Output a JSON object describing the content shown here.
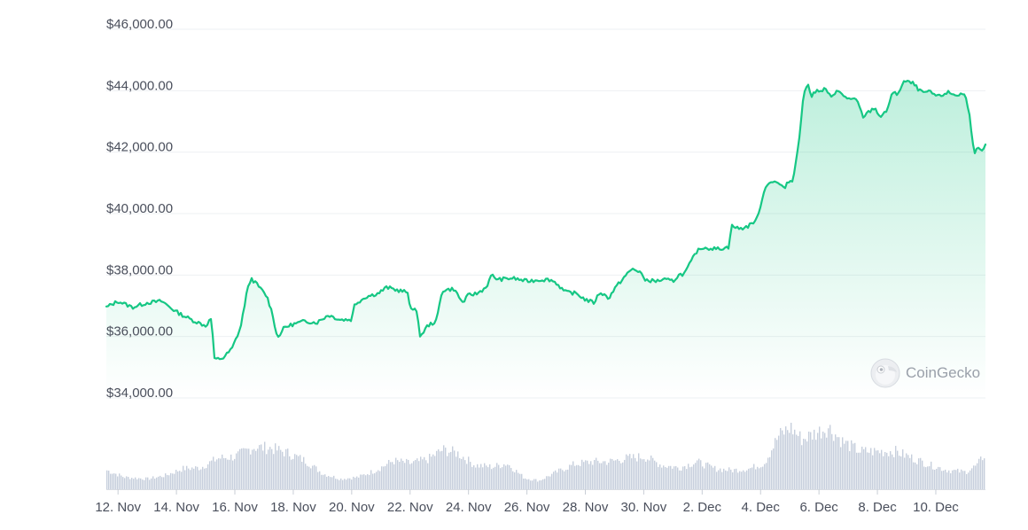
{
  "chart_data": {
    "type": "area",
    "title": "",
    "xlabel": "",
    "ylabel": "",
    "ylim": [
      34000,
      46000
    ],
    "yticks": [
      {
        "value": 46000,
        "label": "$46,000.00"
      },
      {
        "value": 44000,
        "label": "$44,000.00"
      },
      {
        "value": 42000,
        "label": "$42,000.00"
      },
      {
        "value": 40000,
        "label": "$40,000.00"
      },
      {
        "value": 38000,
        "label": "$38,000.00"
      },
      {
        "value": 36000,
        "label": "$36,000.00"
      },
      {
        "value": 34000,
        "label": "$34,000.00"
      }
    ],
    "xlim": [
      11.6,
      41.7
    ],
    "xticks": [
      {
        "value": 12,
        "label": "12. Nov"
      },
      {
        "value": 14,
        "label": "14. Nov"
      },
      {
        "value": 16,
        "label": "16. Nov"
      },
      {
        "value": 18,
        "label": "18. Nov"
      },
      {
        "value": 20,
        "label": "20. Nov"
      },
      {
        "value": 22,
        "label": "22. Nov"
      },
      {
        "value": 24,
        "label": "24. Nov"
      },
      {
        "value": 26,
        "label": "26. Nov"
      },
      {
        "value": 28,
        "label": "28. Nov"
      },
      {
        "value": 30,
        "label": "30. Nov"
      },
      {
        "value": 32,
        "label": "2. Dec"
      },
      {
        "value": 34,
        "label": "4. Dec"
      },
      {
        "value": 36,
        "label": "6. Dec"
      },
      {
        "value": 38,
        "label": "8. Dec"
      },
      {
        "value": 40,
        "label": "10. Dec"
      }
    ],
    "grid": true,
    "legend": "none",
    "series": [
      {
        "kind": "price",
        "color": "#16c784",
        "points": [
          [
            11.6,
            36950
          ],
          [
            12.0,
            37150
          ],
          [
            12.5,
            36950
          ],
          [
            13.0,
            37100
          ],
          [
            13.5,
            37150
          ],
          [
            14.0,
            36800
          ],
          [
            14.5,
            36550
          ],
          [
            15.0,
            36350
          ],
          [
            15.2,
            36600
          ],
          [
            15.3,
            35250
          ],
          [
            15.6,
            35300
          ],
          [
            15.9,
            35600
          ],
          [
            16.2,
            36300
          ],
          [
            16.4,
            37400
          ],
          [
            16.55,
            37900
          ],
          [
            16.8,
            37650
          ],
          [
            17.1,
            37300
          ],
          [
            17.3,
            36700
          ],
          [
            17.45,
            35950
          ],
          [
            17.7,
            36300
          ],
          [
            18.0,
            36400
          ],
          [
            18.4,
            36500
          ],
          [
            18.8,
            36450
          ],
          [
            19.2,
            36700
          ],
          [
            19.6,
            36550
          ],
          [
            20.0,
            36550
          ],
          [
            20.1,
            37050
          ],
          [
            20.5,
            37300
          ],
          [
            20.9,
            37400
          ],
          [
            21.2,
            37600
          ],
          [
            21.6,
            37500
          ],
          [
            21.9,
            37450
          ],
          [
            22.0,
            36950
          ],
          [
            22.2,
            36900
          ],
          [
            22.35,
            36000
          ],
          [
            22.6,
            36350
          ],
          [
            22.9,
            36500
          ],
          [
            23.1,
            37500
          ],
          [
            23.5,
            37550
          ],
          [
            23.8,
            37100
          ],
          [
            24.0,
            37350
          ],
          [
            24.3,
            37400
          ],
          [
            24.6,
            37600
          ],
          [
            24.8,
            38000
          ],
          [
            25.0,
            37850
          ],
          [
            25.5,
            37900
          ],
          [
            26.0,
            37800
          ],
          [
            26.5,
            37850
          ],
          [
            26.8,
            37850
          ],
          [
            27.0,
            37750
          ],
          [
            27.3,
            37450
          ],
          [
            27.7,
            37400
          ],
          [
            28.0,
            37200
          ],
          [
            28.3,
            37100
          ],
          [
            28.5,
            37450
          ],
          [
            28.8,
            37250
          ],
          [
            29.0,
            37550
          ],
          [
            29.3,
            37900
          ],
          [
            29.6,
            38200
          ],
          [
            29.9,
            38100
          ],
          [
            30.0,
            37850
          ],
          [
            30.4,
            37800
          ],
          [
            30.7,
            37850
          ],
          [
            31.0,
            37800
          ],
          [
            31.2,
            38000
          ],
          [
            31.4,
            38050
          ],
          [
            31.6,
            38400
          ],
          [
            31.8,
            38750
          ],
          [
            32.0,
            38900
          ],
          [
            32.5,
            38850
          ],
          [
            32.9,
            38900
          ],
          [
            33.0,
            39600
          ],
          [
            33.3,
            39500
          ],
          [
            33.6,
            39600
          ],
          [
            33.9,
            39850
          ],
          [
            34.1,
            40700
          ],
          [
            34.3,
            41050
          ],
          [
            34.6,
            41000
          ],
          [
            34.8,
            40800
          ],
          [
            34.9,
            41000
          ],
          [
            35.1,
            41100
          ],
          [
            35.3,
            42200
          ],
          [
            35.45,
            43700
          ],
          [
            35.6,
            44250
          ],
          [
            35.75,
            43850
          ],
          [
            35.9,
            44000
          ],
          [
            36.0,
            43950
          ],
          [
            36.2,
            44050
          ],
          [
            36.4,
            43800
          ],
          [
            36.6,
            44000
          ],
          [
            36.9,
            43800
          ],
          [
            37.1,
            43700
          ],
          [
            37.3,
            43700
          ],
          [
            37.5,
            43150
          ],
          [
            37.7,
            43300
          ],
          [
            37.9,
            43450
          ],
          [
            38.1,
            43150
          ],
          [
            38.3,
            43300
          ],
          [
            38.5,
            43900
          ],
          [
            38.7,
            43900
          ],
          [
            38.9,
            44300
          ],
          [
            39.2,
            44250
          ],
          [
            39.5,
            43950
          ],
          [
            39.8,
            43950
          ],
          [
            40.1,
            43800
          ],
          [
            40.4,
            43950
          ],
          [
            40.7,
            43850
          ],
          [
            40.9,
            43900
          ],
          [
            41.0,
            43850
          ],
          [
            41.15,
            43300
          ],
          [
            41.3,
            42000
          ],
          [
            41.45,
            42100
          ],
          [
            41.6,
            42000
          ],
          [
            41.7,
            42200
          ]
        ]
      },
      {
        "kind": "volume",
        "color": "#bcc5d6",
        "points": [
          [
            11.6,
            0.22
          ],
          [
            12.2,
            0.14
          ],
          [
            13.0,
            0.12
          ],
          [
            13.6,
            0.16
          ],
          [
            14.2,
            0.24
          ],
          [
            14.8,
            0.25
          ],
          [
            15.4,
            0.36
          ],
          [
            16.0,
            0.38
          ],
          [
            16.6,
            0.49
          ],
          [
            17.2,
            0.48
          ],
          [
            17.8,
            0.42
          ],
          [
            18.4,
            0.33
          ],
          [
            19.0,
            0.18
          ],
          [
            19.6,
            0.12
          ],
          [
            20.2,
            0.14
          ],
          [
            20.8,
            0.22
          ],
          [
            21.4,
            0.33
          ],
          [
            22.0,
            0.3
          ],
          [
            22.6,
            0.35
          ],
          [
            23.1,
            0.46
          ],
          [
            23.6,
            0.42
          ],
          [
            24.2,
            0.28
          ],
          [
            24.8,
            0.26
          ],
          [
            25.3,
            0.3
          ],
          [
            25.9,
            0.13
          ],
          [
            26.4,
            0.1
          ],
          [
            27.0,
            0.2
          ],
          [
            27.6,
            0.29
          ],
          [
            28.2,
            0.32
          ],
          [
            28.8,
            0.32
          ],
          [
            29.4,
            0.36
          ],
          [
            30.0,
            0.38
          ],
          [
            30.6,
            0.28
          ],
          [
            31.2,
            0.25
          ],
          [
            31.8,
            0.32
          ],
          [
            32.4,
            0.24
          ],
          [
            33.0,
            0.22
          ],
          [
            33.6,
            0.24
          ],
          [
            34.1,
            0.3
          ],
          [
            34.6,
            0.62
          ],
          [
            35.0,
            0.72
          ],
          [
            35.4,
            0.58
          ],
          [
            35.9,
            0.66
          ],
          [
            36.3,
            0.72
          ],
          [
            36.8,
            0.55
          ],
          [
            37.4,
            0.44
          ],
          [
            38.0,
            0.44
          ],
          [
            38.6,
            0.44
          ],
          [
            39.2,
            0.36
          ],
          [
            39.8,
            0.28
          ],
          [
            40.4,
            0.22
          ],
          [
            41.0,
            0.2
          ],
          [
            41.4,
            0.28
          ],
          [
            41.7,
            0.43
          ]
        ]
      }
    ]
  },
  "watermark": {
    "text": "CoinGecko",
    "icon": "coingecko-logo"
  }
}
